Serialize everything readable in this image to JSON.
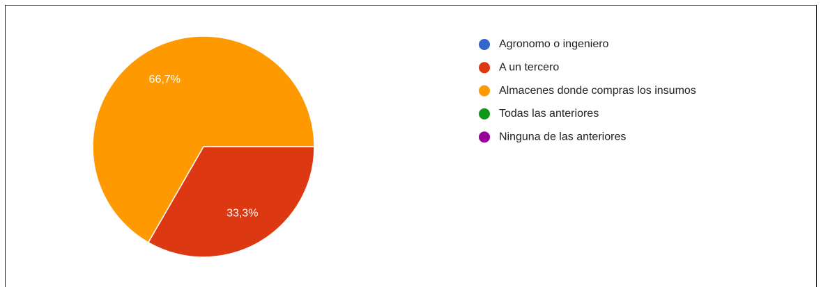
{
  "chart_data": {
    "type": "pie",
    "categories": [
      "Agronomo o ingeniero",
      "A un tercero",
      "Almacenes donde compras los insumos",
      "Todas las anteriores",
      "Ninguna de las anteriores"
    ],
    "values": [
      0,
      33.3,
      66.7,
      0,
      0
    ],
    "value_labels": [
      null,
      "33,3%",
      "66,7%",
      null,
      null
    ],
    "colors": [
      "#3366cc",
      "#dc3912",
      "#ff9900",
      "#109618",
      "#990099"
    ],
    "legend": "right"
  }
}
